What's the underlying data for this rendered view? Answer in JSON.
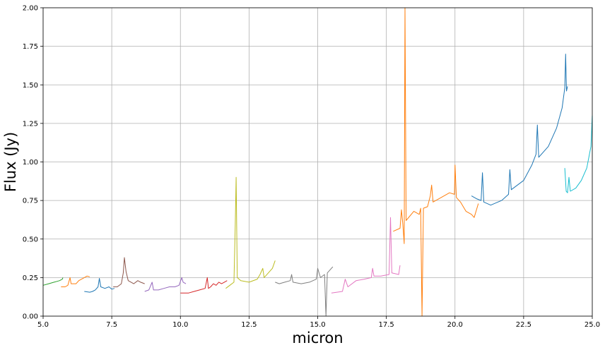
{
  "chart_data": {
    "type": "line",
    "title": "",
    "xlabel": "micron",
    "ylabel": "Flux (Jy)",
    "xlim": [
      5,
      25
    ],
    "ylim": [
      0,
      2
    ],
    "xticks": [
      "5.0",
      "7.5",
      "10.0",
      "12.5",
      "15.0",
      "17.5",
      "20.0",
      "22.5",
      "25.0"
    ],
    "yticks": [
      "0.00",
      "0.25",
      "0.50",
      "0.75",
      "1.00",
      "1.25",
      "1.50",
      "1.75",
      "2.00"
    ],
    "grid": true,
    "legend": "none",
    "series": [
      {
        "color": "#2ca02c",
        "points": [
          [
            5.0,
            0.2
          ],
          [
            5.2,
            0.21
          ],
          [
            5.4,
            0.22
          ],
          [
            5.5,
            0.225
          ],
          [
            5.6,
            0.23
          ],
          [
            5.7,
            0.24
          ],
          [
            5.72,
            0.25
          ]
        ]
      },
      {
        "color": "#ff7f0e",
        "points": [
          [
            5.65,
            0.19
          ],
          [
            5.8,
            0.19
          ],
          [
            5.9,
            0.2
          ],
          [
            5.98,
            0.25
          ],
          [
            6.02,
            0.21
          ],
          [
            6.2,
            0.21
          ],
          [
            6.3,
            0.23
          ],
          [
            6.4,
            0.24
          ],
          [
            6.5,
            0.25
          ],
          [
            6.6,
            0.26
          ],
          [
            6.7,
            0.255
          ]
        ]
      },
      {
        "color": "#1f77b4",
        "points": [
          [
            6.5,
            0.16
          ],
          [
            6.7,
            0.155
          ],
          [
            6.8,
            0.16
          ],
          [
            6.9,
            0.17
          ],
          [
            7.0,
            0.19
          ],
          [
            7.05,
            0.245
          ],
          [
            7.1,
            0.19
          ],
          [
            7.25,
            0.18
          ],
          [
            7.4,
            0.19
          ],
          [
            7.5,
            0.175
          ],
          [
            7.6,
            0.18
          ]
        ]
      },
      {
        "color": "#8c564b",
        "points": [
          [
            7.55,
            0.19
          ],
          [
            7.7,
            0.19
          ],
          [
            7.85,
            0.21
          ],
          [
            7.92,
            0.28
          ],
          [
            7.96,
            0.38
          ],
          [
            8.02,
            0.29
          ],
          [
            8.1,
            0.23
          ],
          [
            8.3,
            0.21
          ],
          [
            8.45,
            0.23
          ],
          [
            8.55,
            0.22
          ],
          [
            8.7,
            0.21
          ]
        ]
      },
      {
        "color": "#9467bd",
        "points": [
          [
            8.7,
            0.16
          ],
          [
            8.85,
            0.17
          ],
          [
            8.97,
            0.22
          ],
          [
            9.02,
            0.17
          ],
          [
            9.2,
            0.17
          ],
          [
            9.4,
            0.18
          ],
          [
            9.6,
            0.19
          ],
          [
            9.8,
            0.19
          ],
          [
            9.95,
            0.2
          ],
          [
            10.05,
            0.25
          ],
          [
            10.1,
            0.22
          ],
          [
            10.2,
            0.21
          ]
        ]
      },
      {
        "color": "#d62728",
        "points": [
          [
            10.0,
            0.15
          ],
          [
            10.3,
            0.15
          ],
          [
            10.5,
            0.16
          ],
          [
            10.7,
            0.17
          ],
          [
            10.9,
            0.18
          ],
          [
            10.98,
            0.25
          ],
          [
            11.02,
            0.18
          ],
          [
            11.1,
            0.19
          ],
          [
            11.2,
            0.21
          ],
          [
            11.3,
            0.2
          ],
          [
            11.4,
            0.22
          ],
          [
            11.5,
            0.21
          ],
          [
            11.6,
            0.22
          ],
          [
            11.7,
            0.23
          ]
        ]
      },
      {
        "color": "#bcbd22",
        "points": [
          [
            11.65,
            0.18
          ],
          [
            11.8,
            0.2
          ],
          [
            11.95,
            0.22
          ],
          [
            12.0,
            0.6
          ],
          [
            12.03,
            0.9
          ],
          [
            12.07,
            0.25
          ],
          [
            12.2,
            0.23
          ],
          [
            12.5,
            0.22
          ],
          [
            12.8,
            0.24
          ],
          [
            12.9,
            0.27
          ],
          [
            13.0,
            0.31
          ],
          [
            13.05,
            0.25
          ],
          [
            13.2,
            0.28
          ],
          [
            13.35,
            0.31
          ],
          [
            13.45,
            0.36
          ]
        ]
      },
      {
        "color": "#7f7f7f",
        "points": [
          [
            13.45,
            0.22
          ],
          [
            13.6,
            0.21
          ],
          [
            13.8,
            0.22
          ],
          [
            14.0,
            0.23
          ],
          [
            14.05,
            0.27
          ],
          [
            14.1,
            0.22
          ],
          [
            14.4,
            0.21
          ],
          [
            14.7,
            0.22
          ],
          [
            14.95,
            0.24
          ],
          [
            15.0,
            0.31
          ],
          [
            15.1,
            0.25
          ],
          [
            15.25,
            0.27
          ],
          [
            15.3,
            0.0
          ],
          [
            15.35,
            0.28
          ],
          [
            15.45,
            0.3
          ],
          [
            15.55,
            0.32
          ]
        ]
      },
      {
        "color": "#e377c2",
        "points": [
          [
            15.5,
            0.15
          ],
          [
            15.9,
            0.16
          ],
          [
            16.0,
            0.24
          ],
          [
            16.1,
            0.19
          ],
          [
            16.4,
            0.23
          ],
          [
            16.7,
            0.24
          ],
          [
            16.95,
            0.25
          ],
          [
            17.0,
            0.31
          ],
          [
            17.05,
            0.26
          ],
          [
            17.3,
            0.26
          ],
          [
            17.6,
            0.27
          ],
          [
            17.65,
            0.64
          ],
          [
            17.7,
            0.28
          ],
          [
            17.95,
            0.27
          ],
          [
            18.0,
            0.33
          ]
        ]
      },
      {
        "color": "#ff7f0e",
        "points": [
          [
            17.75,
            0.55
          ],
          [
            18.0,
            0.57
          ],
          [
            18.05,
            0.69
          ],
          [
            18.1,
            0.6
          ],
          [
            18.15,
            0.47
          ],
          [
            18.18,
            2.0
          ],
          [
            18.22,
            0.62
          ],
          [
            18.5,
            0.68
          ],
          [
            18.7,
            0.66
          ],
          [
            18.75,
            0.7
          ],
          [
            18.8,
            0.0
          ],
          [
            18.85,
            0.7
          ],
          [
            19.0,
            0.71
          ],
          [
            19.1,
            0.78
          ],
          [
            19.15,
            0.85
          ],
          [
            19.2,
            0.74
          ],
          [
            19.5,
            0.77
          ],
          [
            19.8,
            0.8
          ],
          [
            19.98,
            0.79
          ],
          [
            20.0,
            0.98
          ],
          [
            20.05,
            0.77
          ],
          [
            20.2,
            0.74
          ],
          [
            20.4,
            0.68
          ],
          [
            20.6,
            0.66
          ],
          [
            20.7,
            0.64
          ],
          [
            20.8,
            0.7
          ],
          [
            20.85,
            0.73
          ]
        ]
      },
      {
        "color": "#1f77b4",
        "points": [
          [
            20.6,
            0.78
          ],
          [
            20.8,
            0.76
          ],
          [
            20.95,
            0.75
          ],
          [
            21.0,
            0.93
          ],
          [
            21.05,
            0.74
          ],
          [
            21.3,
            0.72
          ],
          [
            21.7,
            0.75
          ],
          [
            21.95,
            0.79
          ],
          [
            22.0,
            0.95
          ],
          [
            22.05,
            0.82
          ],
          [
            22.5,
            0.88
          ],
          [
            22.8,
            0.98
          ],
          [
            22.95,
            1.05
          ],
          [
            23.0,
            1.24
          ],
          [
            23.05,
            1.03
          ],
          [
            23.4,
            1.1
          ],
          [
            23.7,
            1.22
          ],
          [
            23.9,
            1.35
          ],
          [
            24.0,
            1.48
          ],
          [
            24.03,
            1.7
          ],
          [
            24.06,
            1.46
          ],
          [
            24.1,
            1.49
          ]
        ]
      },
      {
        "color": "#17becf",
        "points": [
          [
            24.0,
            0.96
          ],
          [
            24.05,
            0.81
          ],
          [
            24.1,
            0.8
          ],
          [
            24.15,
            0.9
          ],
          [
            24.2,
            0.81
          ],
          [
            24.4,
            0.83
          ],
          [
            24.6,
            0.88
          ],
          [
            24.8,
            0.96
          ],
          [
            24.95,
            1.1
          ],
          [
            25.0,
            1.3
          ]
        ]
      }
    ]
  }
}
